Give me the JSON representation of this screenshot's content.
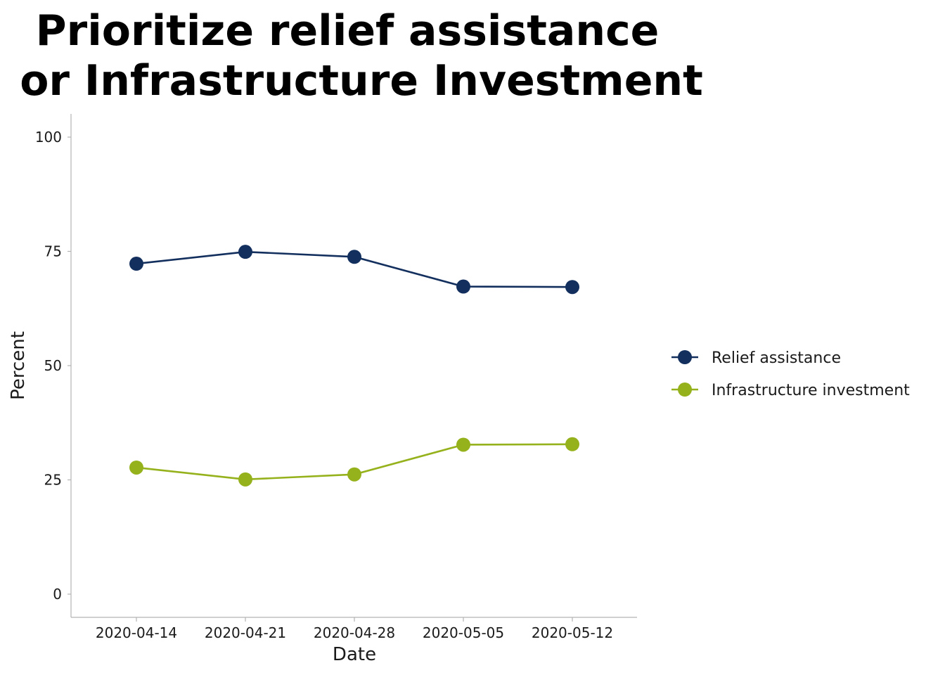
{
  "chart_data": {
    "type": "line",
    "title": [
      "Prioritize relief assistance",
      "or Infrastructure Investment"
    ],
    "xlabel": "Date",
    "ylabel": "Percent",
    "ylim": [
      0,
      100
    ],
    "yticks": [
      0,
      25,
      50,
      75,
      100
    ],
    "categories": [
      "2020-04-14",
      "2020-04-21",
      "2020-04-28",
      "2020-05-05",
      "2020-05-12"
    ],
    "series": [
      {
        "name": "Relief assistance",
        "color": "#132f5e",
        "values": [
          72.3,
          74.9,
          73.8,
          67.3,
          67.2
        ]
      },
      {
        "name": "Infrastructure investment",
        "color": "#95b11b",
        "values": [
          27.7,
          25.1,
          26.2,
          32.7,
          32.8
        ]
      }
    ],
    "grid": false,
    "legend_position": "right"
  }
}
